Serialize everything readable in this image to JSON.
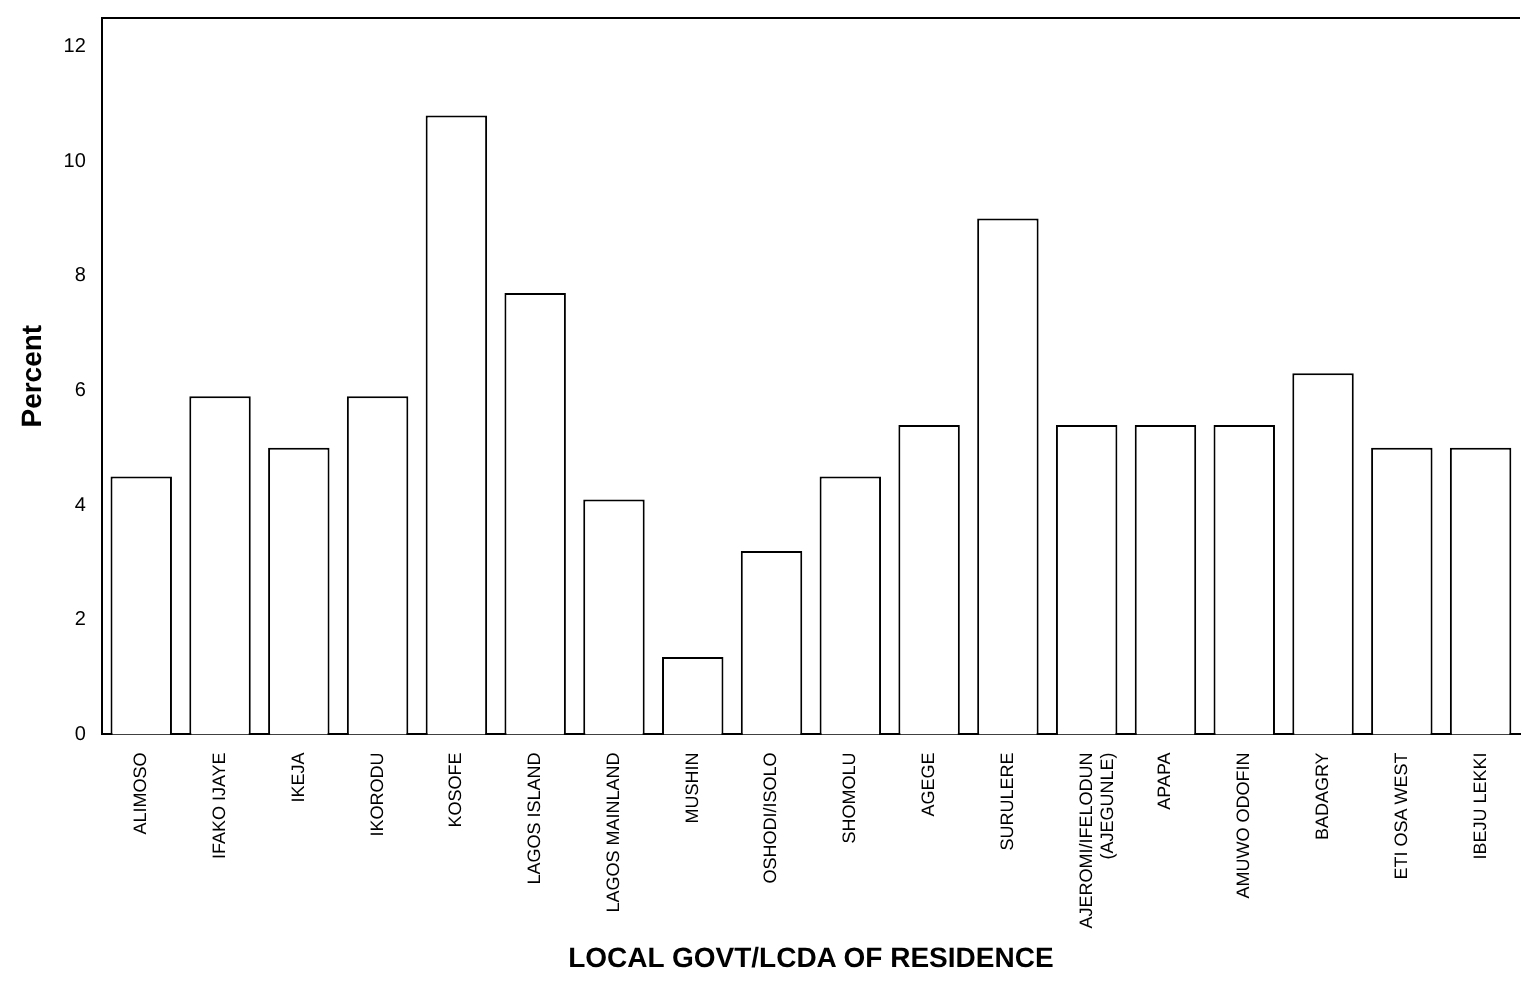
{
  "chart_data": {
    "type": "bar",
    "xlabel": "LOCAL GOVT/LCDA OF RESIDENCE",
    "ylabel": "Percent",
    "categories": [
      "ALIMOSO",
      "IFAKO IJAYE",
      "IKEJA",
      "IKORODU",
      "KOSOFE",
      "LAGOS ISLAND",
      "LAGOS MAINLAND",
      "MUSHIN",
      "OSHODI/ISOLO",
      "SHOMOLU",
      "AGEGE",
      "SURULERE",
      "AJEROMI/IFELODUN\n(AJEGUNLE)",
      "APAPA",
      "AMUWO ODOFIN",
      "BADAGRY",
      "ETI OSA WEST",
      "IBEJU LEKKI"
    ],
    "values": [
      4.5,
      5.9,
      5.0,
      5.9,
      10.8,
      7.7,
      4.1,
      1.35,
      3.2,
      4.5,
      5.4,
      9.0,
      5.4,
      5.4,
      5.4,
      6.3,
      5.0,
      5.0
    ],
    "color": "#ffffff",
    "ylim": [
      0,
      12.5
    ],
    "yticks": [
      0,
      2,
      4,
      6,
      8,
      10,
      12
    ],
    "grid": false,
    "legend": false
  }
}
